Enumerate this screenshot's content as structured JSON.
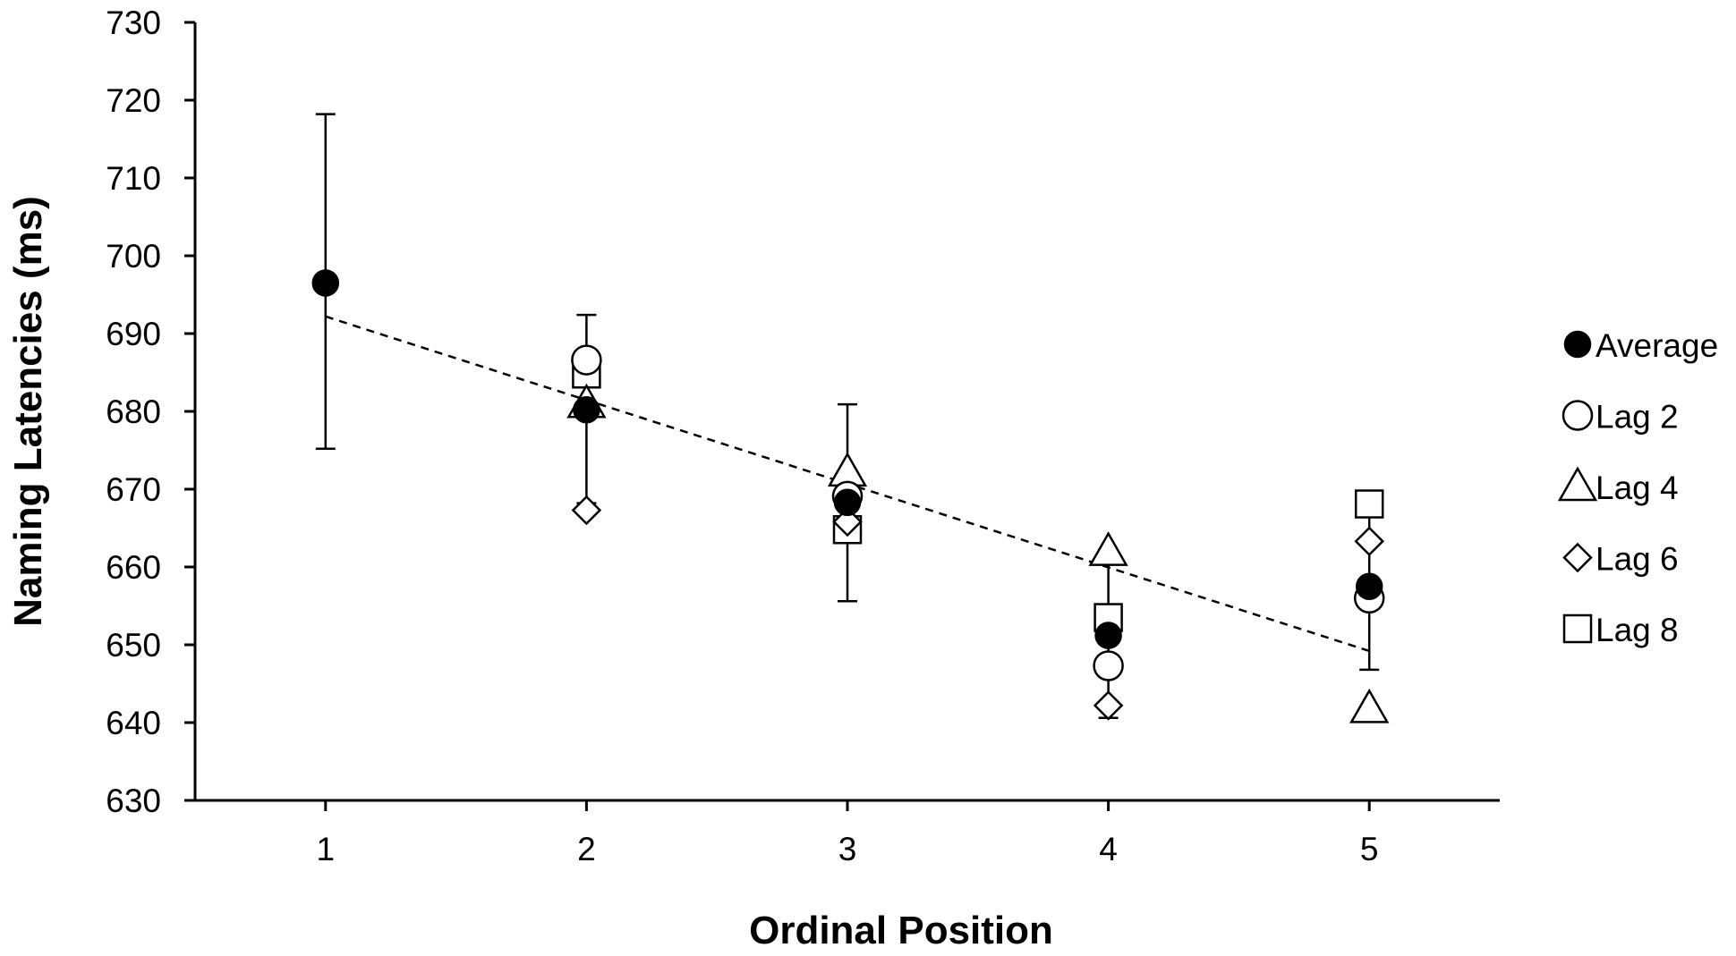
{
  "chart_data": {
    "type": "scatter",
    "title": "",
    "xlabel": "Ordinal Position",
    "ylabel": "Naming Latencies (ms)",
    "x_ticks": [
      "1",
      "2",
      "3",
      "4",
      "5"
    ],
    "y_ticks": [
      "630",
      "640",
      "650",
      "660",
      "670",
      "680",
      "690",
      "700",
      "710",
      "720",
      "730"
    ],
    "xlim": [
      0.5,
      5.5
    ],
    "ylim": [
      630,
      730
    ],
    "grid": false,
    "legend_position": "right",
    "series": [
      {
        "name": "Average",
        "marker": "filled-circle",
        "x": [
          1,
          2,
          3,
          4,
          5
        ],
        "y": [
          696.5,
          680.2,
          668.3,
          651.2,
          657.5
        ],
        "error_low": [
          675.2,
          668.2,
          655.6,
          640.6,
          646.8
        ],
        "error_high": [
          718.2,
          692.4,
          680.9,
          660.6,
          668.1
        ]
      },
      {
        "name": "Lag 2",
        "marker": "open-circle",
        "x": [
          2,
          3,
          4,
          5
        ],
        "y": [
          686.6,
          669.1,
          647.3,
          656.0
        ]
      },
      {
        "name": "Lag 4",
        "marker": "open-triangle",
        "x": [
          2,
          3,
          4,
          5
        ],
        "y": [
          681.0,
          672.2,
          662.0,
          641.8
        ]
      },
      {
        "name": "Lag 6",
        "marker": "open-diamond",
        "x": [
          2,
          3,
          4,
          5
        ],
        "y": [
          667.3,
          665.8,
          642.2,
          663.3
        ]
      },
      {
        "name": "Lag 8",
        "marker": "open-square",
        "x": [
          2,
          3,
          4,
          5
        ],
        "y": [
          684.8,
          664.8,
          653.5,
          668.1
        ]
      }
    ],
    "trendline": {
      "style": "dashed",
      "x": [
        1,
        5
      ],
      "y": [
        692.2,
        649.2
      ]
    }
  }
}
